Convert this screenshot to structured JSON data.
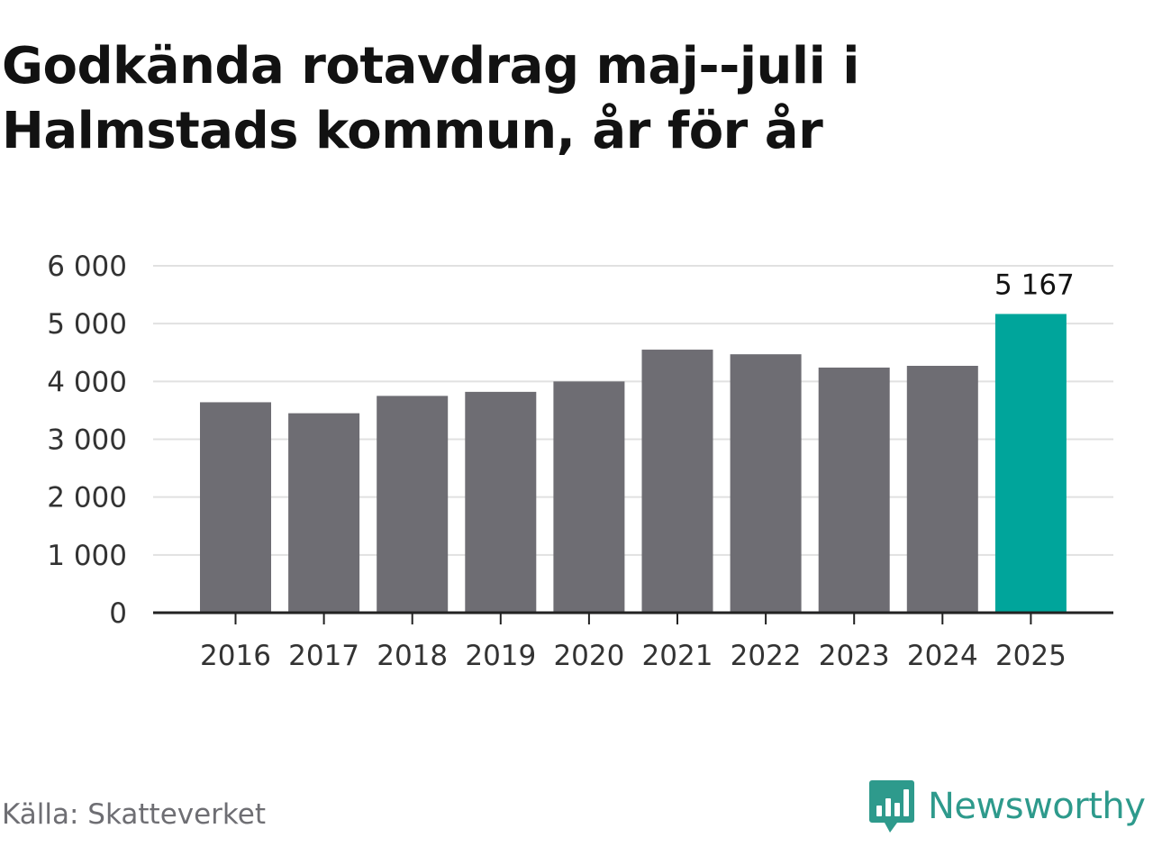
{
  "title": "Godkända rotavdrag maj--juli i Halmstads kommun, år för år",
  "source": "Källa: Skatteverket",
  "brand": "Newsworthy",
  "colors": {
    "bar": "#6e6d73",
    "highlight": "#00a59b",
    "grid": "#e1e1e1",
    "axis": "#222222",
    "text": "#333333"
  },
  "chart_data": {
    "type": "bar",
    "categories": [
      "2016",
      "2017",
      "2018",
      "2019",
      "2020",
      "2021",
      "2022",
      "2023",
      "2024",
      "2025"
    ],
    "values": [
      3640,
      3450,
      3750,
      3820,
      4000,
      4550,
      4470,
      4240,
      4270,
      5167
    ],
    "highlight_index": 9,
    "data_labels": {
      "2025": "5 167"
    },
    "yticks": [
      "0",
      "1 000",
      "2 000",
      "3 000",
      "4 000",
      "5 000",
      "6 000"
    ],
    "ylim": [
      0,
      6000
    ],
    "grid": true
  }
}
